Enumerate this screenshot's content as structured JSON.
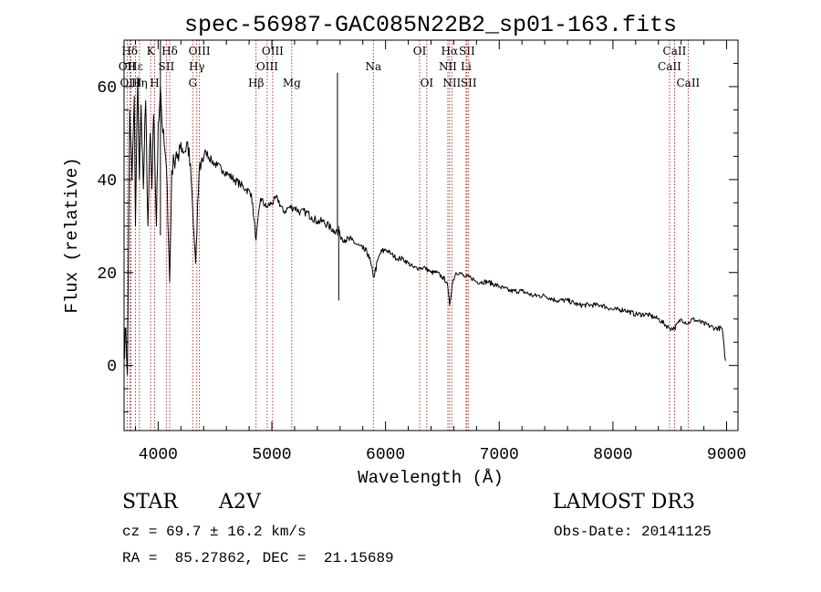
{
  "chart_data": {
    "type": "line",
    "title": "spec-56987-GAC085N22B2_sp01-163.fits",
    "xlabel": "Wavelength (Å)",
    "ylabel": "Flux (relative)",
    "xlim": [
      3700,
      9100
    ],
    "ylim": [
      -14,
      70
    ],
    "xticks": [
      4000,
      5000,
      6000,
      7000,
      8000,
      9000
    ],
    "yticks": [
      0,
      20,
      40,
      60
    ],
    "series": [
      {
        "name": "flux",
        "x": [
          3700,
          3715,
          3730,
          3740,
          3750,
          3770,
          3790,
          3800,
          3820,
          3835,
          3850,
          3870,
          3890,
          3910,
          3930,
          3945,
          3960,
          3970,
          3985,
          4000,
          4020,
          4040,
          4060,
          4080,
          4101,
          4120,
          4140,
          4160,
          4180,
          4200,
          4230,
          4260,
          4290,
          4310,
          4330,
          4340,
          4360,
          4380,
          4420,
          4470,
          4520,
          4570,
          4620,
          4670,
          4720,
          4770,
          4820,
          4861,
          4900,
          4950,
          5000,
          5050,
          5100,
          5150,
          5200,
          5250,
          5300,
          5350,
          5400,
          5450,
          5500,
          5550,
          5580,
          5600,
          5650,
          5700,
          5750,
          5800,
          5850,
          5893,
          5950,
          6000,
          6050,
          6100,
          6150,
          6200,
          6250,
          6300,
          6350,
          6400,
          6450,
          6500,
          6540,
          6563,
          6590,
          6620,
          6650,
          6700,
          6750,
          6800,
          6900,
          7000,
          7100,
          7200,
          7300,
          7400,
          7500,
          7600,
          7700,
          7800,
          7900,
          8000,
          8100,
          8200,
          8300,
          8400,
          8498,
          8542,
          8600,
          8662,
          8700,
          8800,
          8900,
          8960,
          8990
        ],
        "y": [
          2,
          8,
          -2,
          30,
          55,
          40,
          58,
          30,
          62,
          40,
          56,
          38,
          57,
          30,
          50,
          38,
          54,
          44,
          30,
          52,
          60,
          50,
          46,
          38,
          18,
          42,
          44,
          46,
          44,
          48,
          46,
          48,
          40,
          30,
          22,
          28,
          42,
          44,
          46,
          44,
          43,
          42,
          41,
          40,
          39,
          38,
          37,
          27,
          36,
          34,
          35,
          36,
          33,
          34,
          34,
          33,
          33,
          32,
          31,
          31,
          30,
          29,
          29,
          28,
          27,
          27,
          26,
          25,
          24,
          19,
          24,
          25,
          24,
          23,
          23,
          22,
          21,
          21,
          21,
          20,
          20,
          19,
          18,
          13,
          18,
          20,
          20,
          19,
          19,
          18,
          18,
          17,
          16,
          16,
          15,
          15,
          14,
          14,
          13,
          13,
          13,
          12,
          12,
          11,
          11,
          10,
          8,
          8,
          10,
          9,
          10,
          9,
          8,
          8,
          1
        ]
      }
    ],
    "spikes": [
      {
        "x": 4020,
        "y": 70
      },
      {
        "x": 5577,
        "y": 63
      },
      {
        "x": 5588,
        "y": 14
      }
    ],
    "lines": [
      {
        "label": "Hδ",
        "x": 3750,
        "row": 1
      },
      {
        "label": "OII",
        "x": 3727,
        "row": 2
      },
      {
        "label": "OIII",
        "x": 3760,
        "row": 3
      },
      {
        "label": "Hε",
        "x": 3800,
        "row": 2
      },
      {
        "label": "K",
        "x": 3934,
        "row": 1
      },
      {
        "label": "Hη",
        "x": 3835,
        "row": 3
      },
      {
        "label": "H",
        "x": 3969,
        "row": 3
      },
      {
        "label": "Hδ",
        "x": 4101,
        "row": 1
      },
      {
        "label": "SII",
        "x": 4072,
        "row": 2
      },
      {
        "label": "OIII",
        "x": 4363,
        "row": 1
      },
      {
        "label": "Hγ",
        "x": 4340,
        "row": 2
      },
      {
        "label": "G",
        "x": 4304,
        "row": 3
      },
      {
        "label": "OIII",
        "x": 5007,
        "row": 1
      },
      {
        "label": "OIII",
        "x": 4959,
        "row": 2
      },
      {
        "label": "Hβ",
        "x": 4861,
        "row": 3
      },
      {
        "label": "Mg",
        "x": 5175,
        "row": 3
      },
      {
        "label": "Na",
        "x": 5893,
        "row": 2
      },
      {
        "label": "OI",
        "x": 6300,
        "row": 1
      },
      {
        "label": "OI",
        "x": 6363,
        "row": 3
      },
      {
        "label": "Hα",
        "x": 6563,
        "row": 1
      },
      {
        "label": "SII",
        "x": 6716,
        "row": 1
      },
      {
        "label": "NII",
        "x": 6548,
        "row": 2
      },
      {
        "label": "Li",
        "x": 6708,
        "row": 2
      },
      {
        "label": "NII",
        "x": 6583,
        "row": 3
      },
      {
        "label": "SII",
        "x": 6731,
        "row": 3
      },
      {
        "label": "CaII",
        "x": 8542,
        "row": 1
      },
      {
        "label": "CaII",
        "x": 8498,
        "row": 2
      },
      {
        "label": "CaII",
        "x": 8662,
        "row": 3
      }
    ]
  },
  "info": {
    "classification": "STAR",
    "subclass": "A2V",
    "survey": "LAMOST DR3",
    "redshift": "cz = 69.7 ± 16.2 km/s",
    "obs_date": "Obs-Date: 20141125",
    "coordinates": "RA =  85.27862, DEC =  21.15689"
  }
}
